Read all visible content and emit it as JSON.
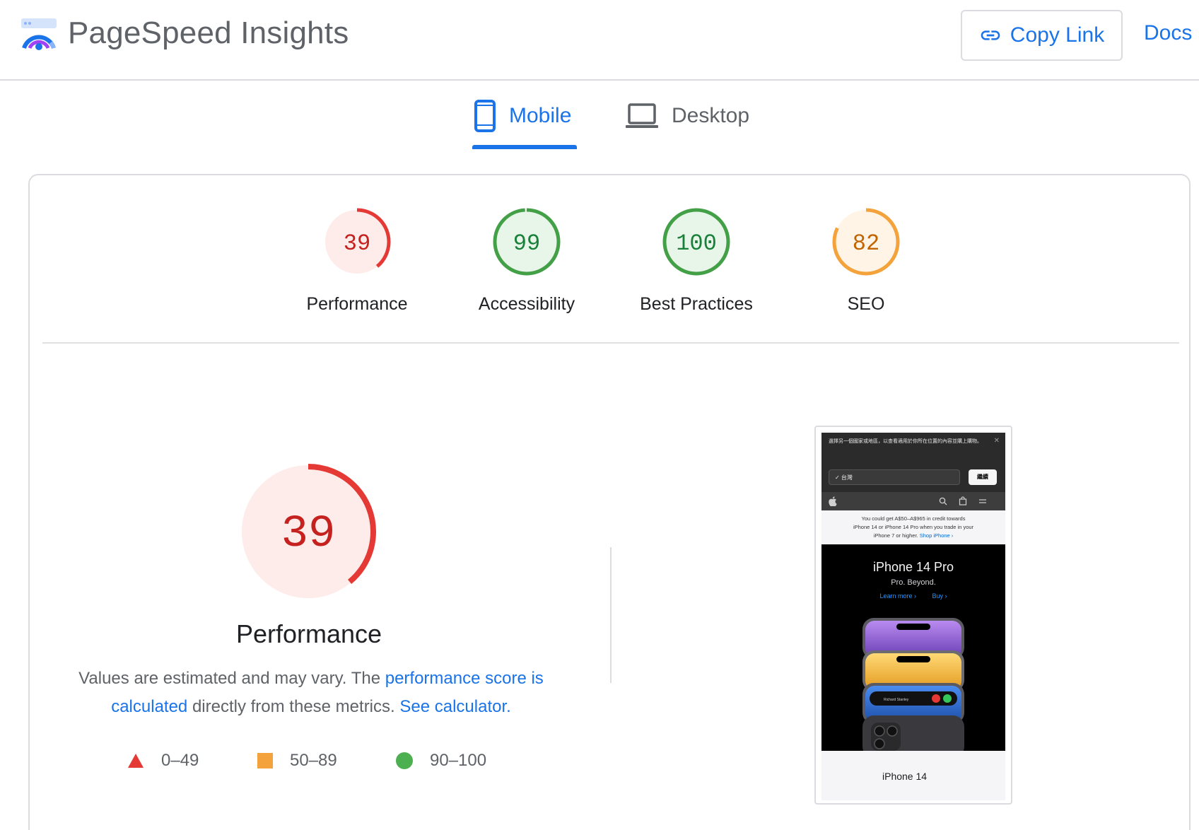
{
  "header": {
    "app_title": "PageSpeed Insights",
    "copy_link_label": "Copy Link",
    "docs_label": "Docs"
  },
  "tabs": [
    {
      "label": "Mobile",
      "selected": true
    },
    {
      "label": "Desktop",
      "selected": false
    }
  ],
  "scores": [
    {
      "label": "Performance",
      "value": "39",
      "score": 39,
      "rating": "fail",
      "color": "#e53935"
    },
    {
      "label": "Accessibility",
      "value": "99",
      "score": 99,
      "rating": "pass",
      "color": "#43a047"
    },
    {
      "label": "Best Practices",
      "value": "100",
      "score": 100,
      "rating": "pass",
      "color": "#43a047"
    },
    {
      "label": "SEO",
      "value": "82",
      "score": 82,
      "rating": "average",
      "color": "#f4a23b"
    }
  ],
  "performance": {
    "title": "Performance",
    "score_value": "39",
    "score": 39,
    "desc_prefix": "Values are estimated and may vary. The ",
    "desc_link1": "performance score is calculated",
    "desc_middle": " directly from these metrics. ",
    "desc_link2": "See calculator."
  },
  "legend": [
    {
      "range": "0–49",
      "shape": "triangle",
      "color": "#e53935"
    },
    {
      "range": "50–89",
      "shape": "square",
      "color": "#f4a23b"
    },
    {
      "range": "90–100",
      "shape": "circle",
      "color": "#4caf50"
    }
  ],
  "screenshot": {
    "cookie_text": "選擇另一個國家或地區，以查看適用於你所在位置的內容並購上購物。",
    "cookie_close": "✕",
    "country_value": "✓  台灣",
    "continue_label": "繼續",
    "nav_icons": [
      "apple-icon",
      "search-icon",
      "bag-icon",
      "menu-icon"
    ],
    "promo_line1": "You could get A$50–A$965 in credit towards",
    "promo_line2": "iPhone 14 or iPhone 14 Pro when you trade in your",
    "promo_line3": "iPhone 7 or higher.",
    "promo_link": "Shop iPhone ›",
    "hero_title": "iPhone 14 Pro",
    "hero_subtitle": "Pro. Beyond.",
    "hero_learn_more": "Learn more ›",
    "hero_buy": "Buy ›",
    "phone_caller": "Richard Stanley",
    "below_text": "iPhone 14"
  }
}
